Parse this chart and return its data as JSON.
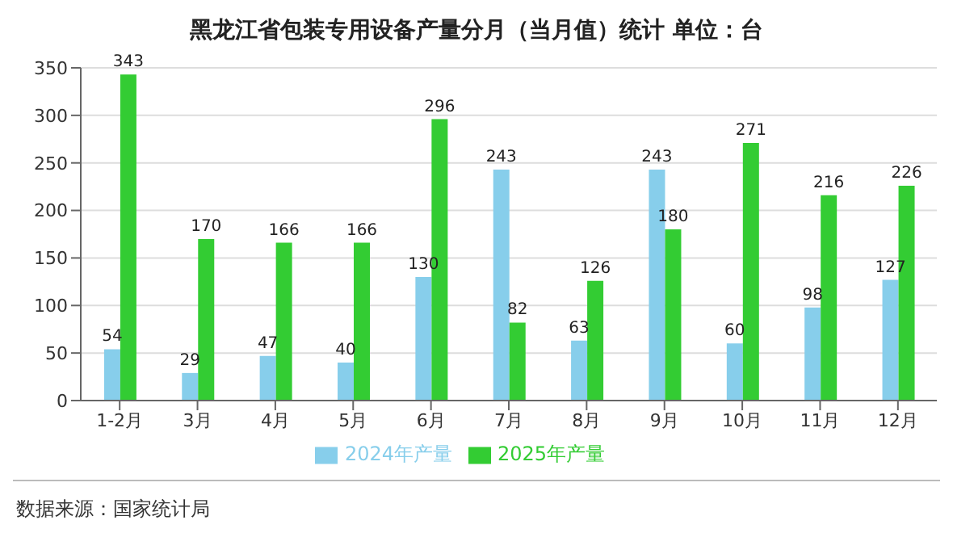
{
  "chart_data": {
    "type": "bar",
    "title": "黑龙江省包装专用设备产量分月（当月值）统计 单位：台",
    "categories": [
      "1-2月",
      "3月",
      "4月",
      "5月",
      "6月",
      "7月",
      "8月",
      "9月",
      "10月",
      "11月",
      "12月"
    ],
    "series": [
      {
        "name": "2024年产量",
        "color": "#87ceeb",
        "values": [
          54,
          29,
          47,
          40,
          130,
          243,
          63,
          243,
          60,
          98,
          127
        ]
      },
      {
        "name": "2025年产量",
        "color": "#33cc33",
        "values": [
          343,
          170,
          166,
          166,
          296,
          82,
          126,
          180,
          271,
          216,
          226
        ]
      }
    ],
    "ylim": [
      0,
      350
    ],
    "yticks": [
      0,
      50,
      100,
      150,
      200,
      250,
      300,
      350
    ],
    "grid": "y",
    "legend": "bottom",
    "data_labels": true,
    "annotations": [
      "数据来源：国家统计局"
    ]
  }
}
